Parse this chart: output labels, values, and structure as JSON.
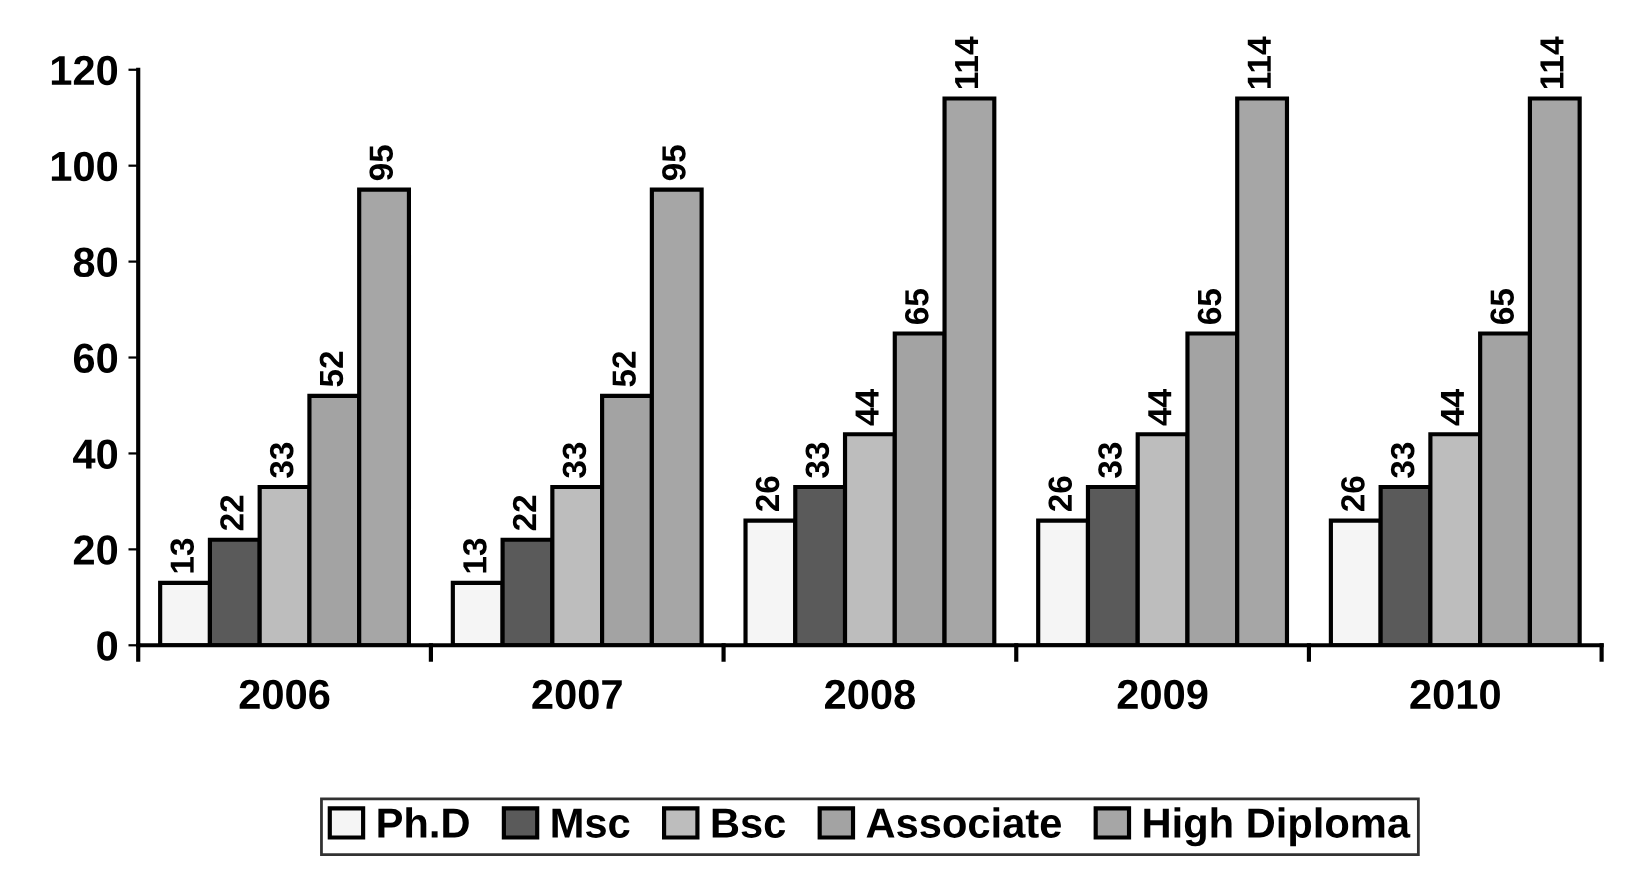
{
  "chart_data": {
    "type": "bar",
    "categories": [
      "2006",
      "2007",
      "2008",
      "2009",
      "2010"
    ],
    "series": [
      {
        "name": "Ph.D",
        "color": "#f5f5f5",
        "values": [
          13,
          13,
          26,
          26,
          26
        ]
      },
      {
        "name": "Msc",
        "color": "#5a5a5a",
        "values": [
          22,
          22,
          33,
          33,
          33
        ]
      },
      {
        "name": "Bsc",
        "color": "#bdbdbd",
        "values": [
          33,
          33,
          44,
          44,
          44
        ]
      },
      {
        "name": "Associate",
        "color": "#a3a3a3",
        "values": [
          52,
          52,
          65,
          65,
          65
        ]
      },
      {
        "name": "High Diploma",
        "color": "#a6a6a6",
        "values": [
          95,
          95,
          114,
          114,
          114
        ]
      }
    ],
    "ylim": [
      0,
      120
    ],
    "yticks": [
      0,
      20,
      40,
      60,
      80,
      100,
      120
    ],
    "data_labels": true,
    "legend": "bottom",
    "grid": false
  }
}
